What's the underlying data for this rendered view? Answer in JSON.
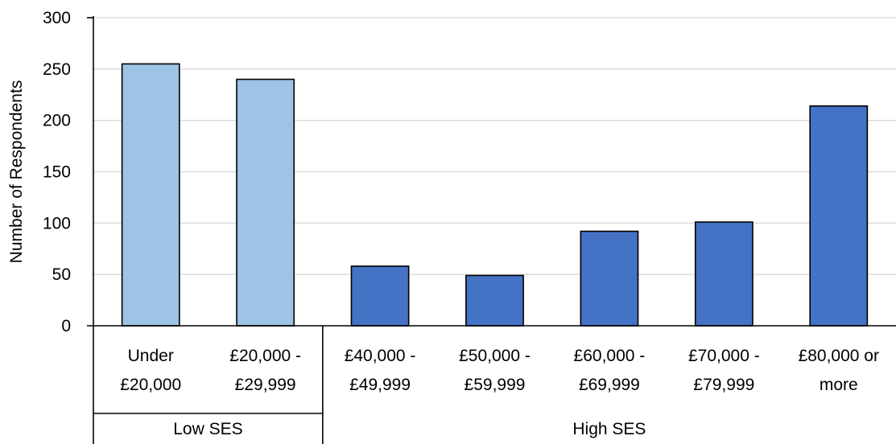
{
  "chart_data": {
    "type": "bar",
    "title": "",
    "xlabel": "",
    "ylabel": "Number of Respondents",
    "ylim": [
      0,
      300
    ],
    "yticks": [
      0,
      50,
      100,
      150,
      200,
      250,
      300
    ],
    "grid": true,
    "categories": [
      {
        "lines": [
          "Under",
          "£20,000"
        ],
        "group": "Low SES"
      },
      {
        "lines": [
          "£20,000 -",
          "£29,999"
        ],
        "group": "Low SES"
      },
      {
        "lines": [
          "£40,000 -",
          "£49,999"
        ],
        "group": "High SES"
      },
      {
        "lines": [
          "£50,000 -",
          "£59,999"
        ],
        "group": "High SES"
      },
      {
        "lines": [
          "£60,000 -",
          "£69,999"
        ],
        "group": "High SES"
      },
      {
        "lines": [
          "£70,000 -",
          "£79,999"
        ],
        "group": "High SES"
      },
      {
        "lines": [
          "£80,000 or",
          "more"
        ],
        "group": "High SES"
      }
    ],
    "values": [
      255,
      240,
      58,
      49,
      92,
      101,
      214
    ],
    "groups": [
      {
        "name": "Low SES",
        "color": "#9DC3E6"
      },
      {
        "name": "High SES",
        "color": "#4472C4"
      }
    ]
  }
}
